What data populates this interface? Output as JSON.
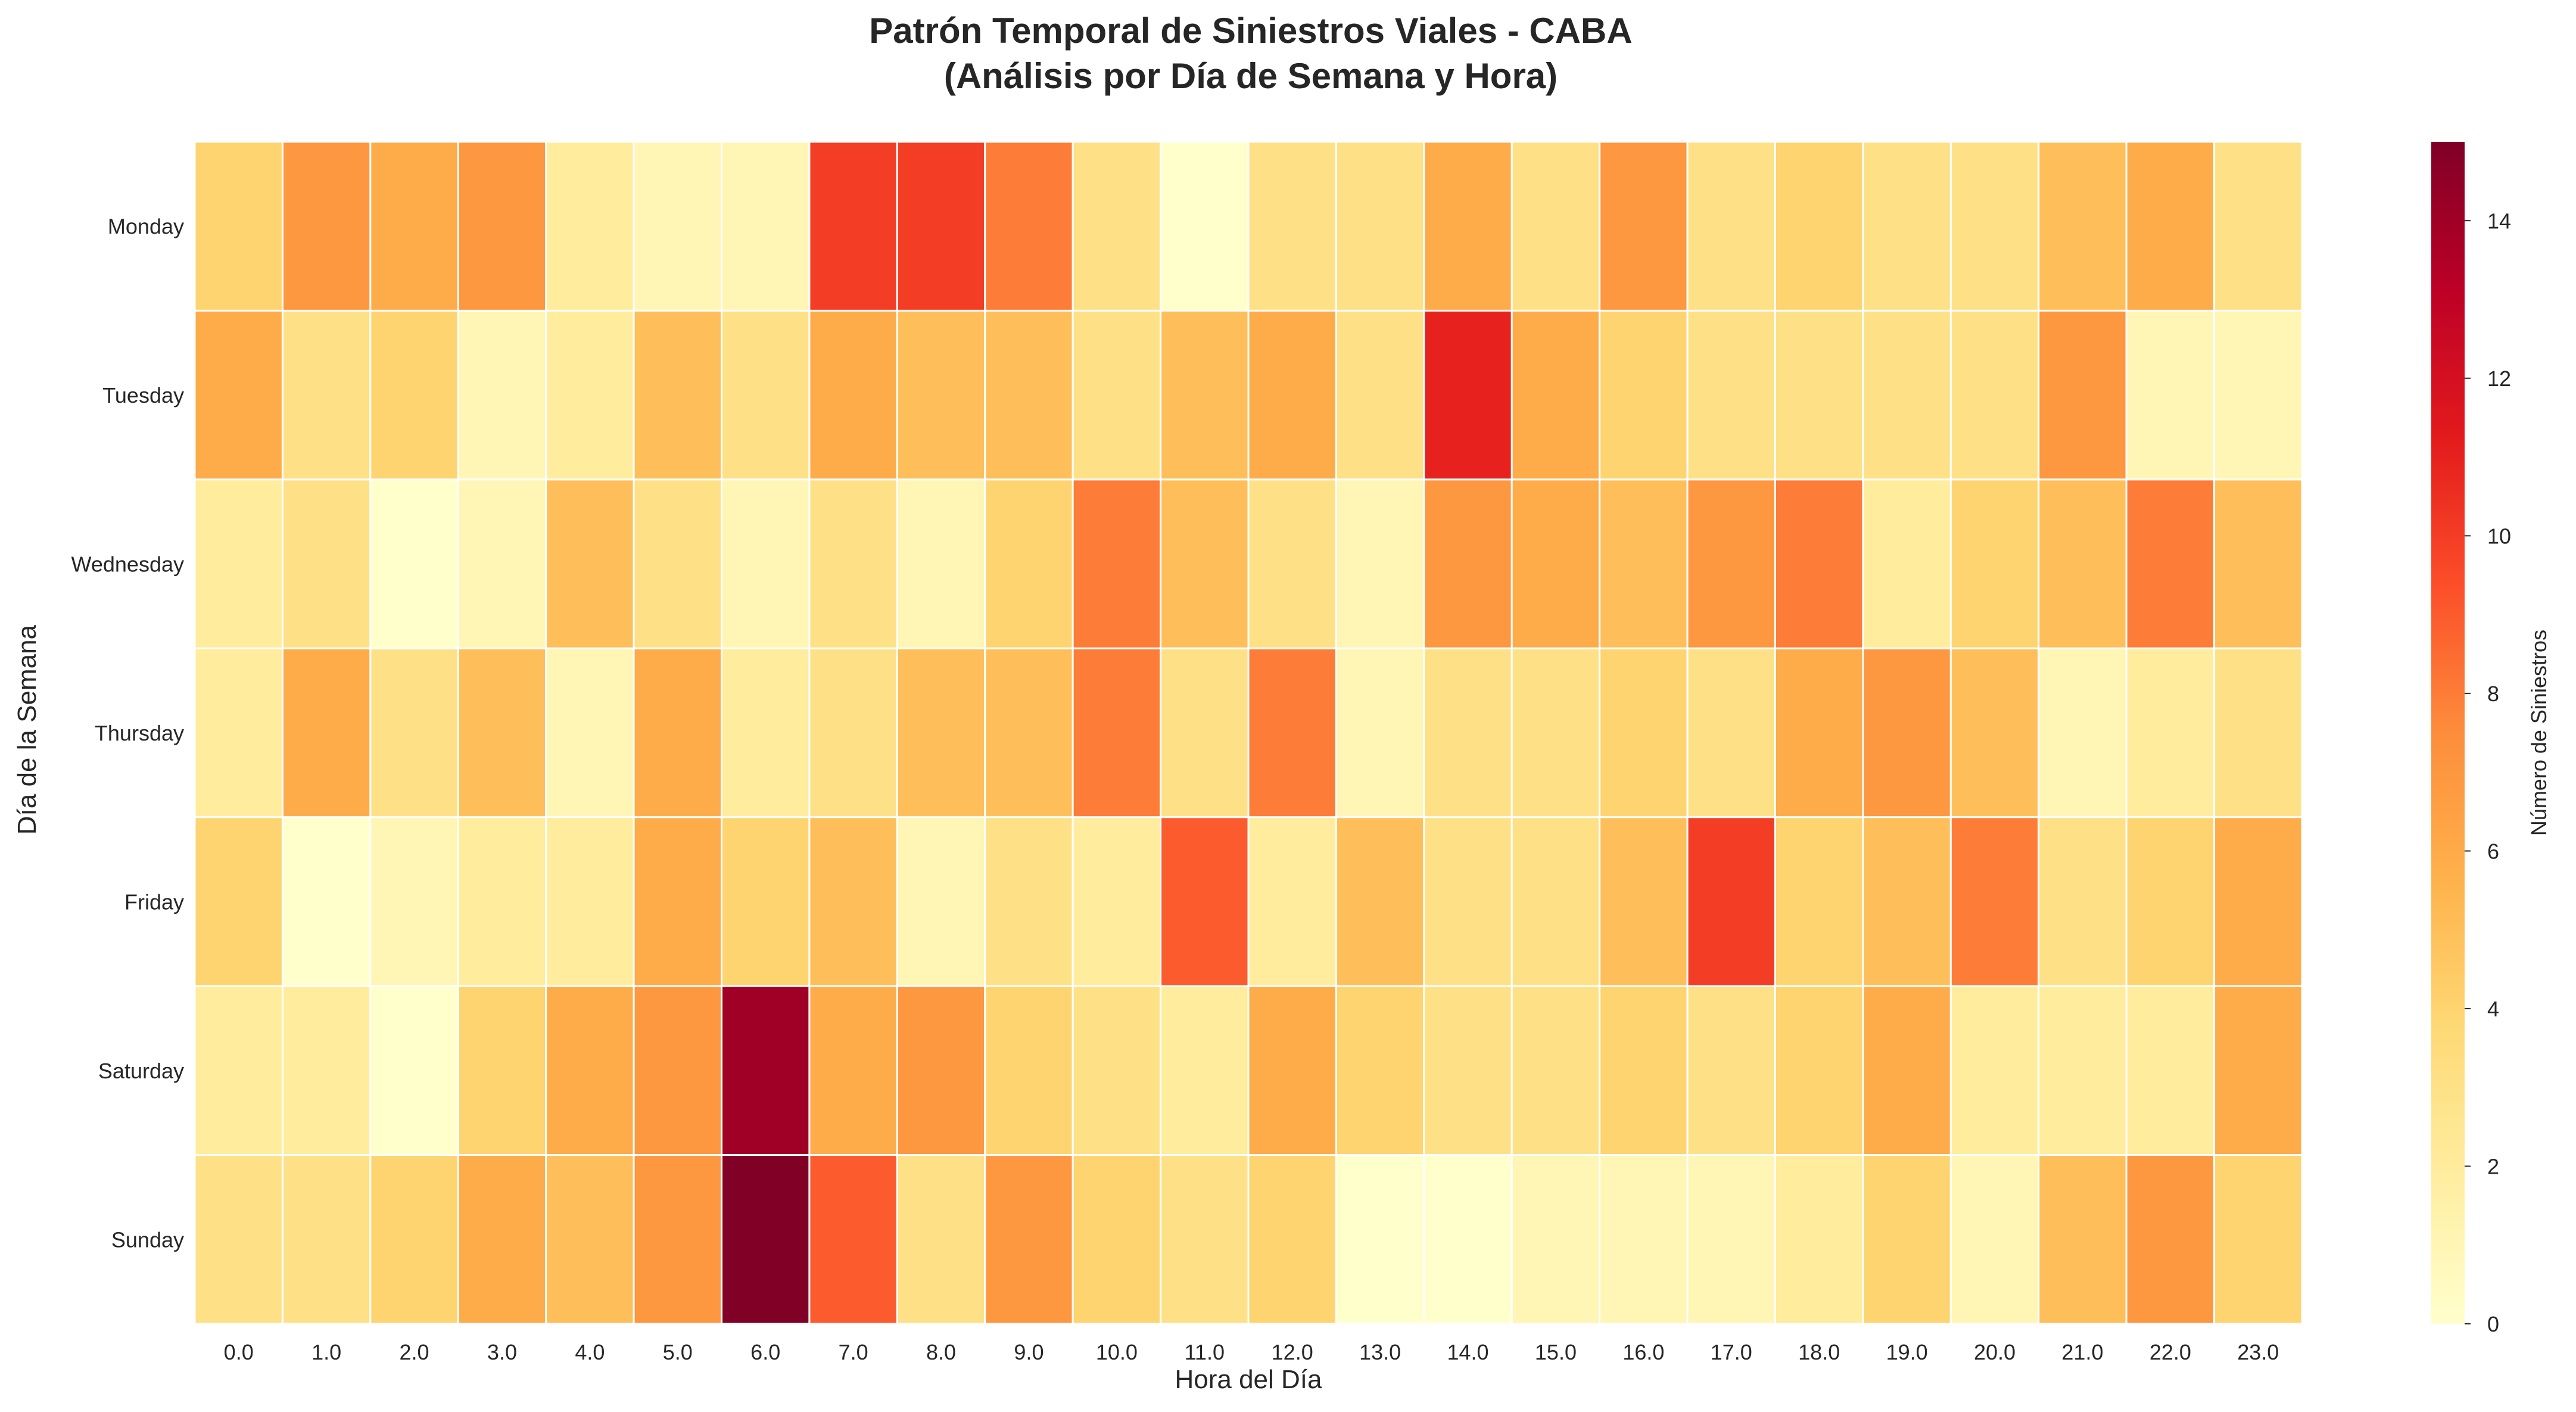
{
  "chart_data": {
    "type": "heatmap",
    "title": "Patrón Temporal de Siniestros Viales - CABA",
    "subtitle": "(Análisis por Día de Semana y Hora)",
    "xlabel": "Hora del Día",
    "ylabel": "Día de la Semana",
    "x_categories": [
      "0.0",
      "1.0",
      "2.0",
      "3.0",
      "4.0",
      "5.0",
      "6.0",
      "7.0",
      "8.0",
      "9.0",
      "10.0",
      "11.0",
      "12.0",
      "13.0",
      "14.0",
      "15.0",
      "16.0",
      "17.0",
      "18.0",
      "19.0",
      "20.0",
      "21.0",
      "22.0",
      "23.0"
    ],
    "y_categories": [
      "Monday",
      "Tuesday",
      "Wednesday",
      "Thursday",
      "Friday",
      "Saturday",
      "Sunday"
    ],
    "values": [
      [
        4,
        7,
        6,
        7,
        2,
        1,
        1,
        10,
        10,
        8,
        3,
        0,
        3,
        3,
        6,
        3,
        7,
        3,
        4,
        3,
        3,
        5,
        6,
        3
      ],
      [
        6,
        3,
        4,
        1,
        2,
        5,
        3,
        6,
        5,
        5,
        3,
        5,
        6,
        3,
        11,
        6,
        4,
        3,
        3,
        3,
        3,
        7,
        1,
        1
      ],
      [
        2,
        3,
        0,
        1,
        5,
        3,
        1,
        3,
        1,
        4,
        8,
        5,
        3,
        1,
        7,
        6,
        5,
        7,
        8,
        2,
        4,
        5,
        8,
        5
      ],
      [
        2,
        6,
        3,
        5,
        1,
        6,
        2,
        3,
        5,
        5,
        8,
        3,
        8,
        1,
        3,
        3,
        4,
        3,
        6,
        7,
        5,
        1,
        2,
        3
      ],
      [
        4,
        0,
        1,
        2,
        2,
        6,
        4,
        5,
        1,
        3,
        2,
        9,
        2,
        5,
        3,
        3,
        5,
        10,
        4,
        5,
        8,
        3,
        4,
        6
      ],
      [
        2,
        2,
        0,
        4,
        6,
        7,
        14,
        6,
        7,
        4,
        3,
        2,
        6,
        4,
        3,
        3,
        4,
        3,
        4,
        6,
        2,
        2,
        2,
        6
      ],
      [
        3,
        3,
        4,
        6,
        5,
        7,
        15,
        9,
        3,
        7,
        4,
        3,
        4,
        0,
        0,
        1,
        1,
        1,
        2,
        4,
        1,
        5,
        7,
        4
      ]
    ],
    "colorbar": {
      "label": "Número de Siniestros",
      "min": 0,
      "max": 15,
      "ticks": [
        "0",
        "2",
        "4",
        "6",
        "8",
        "10",
        "12",
        "14"
      ],
      "colormap": "YlOrRd",
      "stops": [
        "#ffffcc",
        "#ffeda0",
        "#fed976",
        "#feb24c",
        "#fd8d3c",
        "#fc4e2a",
        "#e31a1c",
        "#bd0026",
        "#800026"
      ]
    },
    "grid": false,
    "cell_border_color": "#ffffff"
  }
}
